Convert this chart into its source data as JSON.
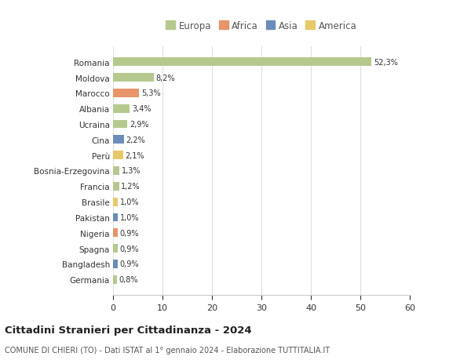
{
  "countries": [
    "Romania",
    "Moldova",
    "Marocco",
    "Albania",
    "Ucraina",
    "Cina",
    "Perù",
    "Bosnia-Erzegovina",
    "Francia",
    "Brasile",
    "Pakistan",
    "Nigeria",
    "Spagna",
    "Bangladesh",
    "Germania"
  ],
  "values": [
    52.3,
    8.2,
    5.3,
    3.4,
    2.9,
    2.2,
    2.1,
    1.3,
    1.2,
    1.0,
    1.0,
    0.9,
    0.9,
    0.9,
    0.8
  ],
  "labels": [
    "52,3%",
    "8,2%",
    "5,3%",
    "3,4%",
    "2,9%",
    "2,2%",
    "2,1%",
    "1,3%",
    "1,2%",
    "1,0%",
    "1,0%",
    "0,9%",
    "0,9%",
    "0,9%",
    "0,8%"
  ],
  "colors": [
    "#b5c98e",
    "#b5c98e",
    "#e8956a",
    "#b5c98e",
    "#b5c98e",
    "#6b8cba",
    "#e8c96a",
    "#b5c98e",
    "#b5c98e",
    "#e8c96a",
    "#6b8cba",
    "#e8956a",
    "#b5c98e",
    "#6b8cba",
    "#b5c98e"
  ],
  "legend_labels": [
    "Europa",
    "Africa",
    "Asia",
    "America"
  ],
  "legend_colors": [
    "#b5c98e",
    "#e8956a",
    "#6b8cba",
    "#e8c96a"
  ],
  "title": "Cittadini Stranieri per Cittadinanza - 2024",
  "subtitle": "COMUNE DI CHIERI (TO) - Dati ISTAT al 1° gennaio 2024 - Elaborazione TUTTITALIA.IT",
  "xlim": [
    0,
    60
  ],
  "xticks": [
    0,
    10,
    20,
    30,
    40,
    50,
    60
  ],
  "bg_color": "#ffffff",
  "grid_color": "#e0e0e0",
  "bar_height": 0.55
}
